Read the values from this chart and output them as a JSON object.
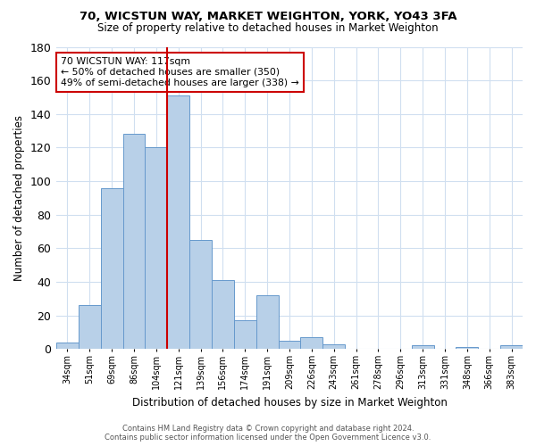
{
  "title": "70, WICSTUN WAY, MARKET WEIGHTON, YORK, YO43 3FA",
  "subtitle": "Size of property relative to detached houses in Market Weighton",
  "xlabel": "Distribution of detached houses by size in Market Weighton",
  "ylabel": "Number of detached properties",
  "bar_labels": [
    "34sqm",
    "51sqm",
    "69sqm",
    "86sqm",
    "104sqm",
    "121sqm",
    "139sqm",
    "156sqm",
    "174sqm",
    "191sqm",
    "209sqm",
    "226sqm",
    "243sqm",
    "261sqm",
    "278sqm",
    "296sqm",
    "313sqm",
    "331sqm",
    "348sqm",
    "366sqm",
    "383sqm"
  ],
  "bar_values": [
    4,
    26,
    96,
    128,
    120,
    151,
    65,
    41,
    17,
    32,
    5,
    7,
    3,
    0,
    0,
    0,
    2,
    0,
    1,
    0,
    2
  ],
  "bar_color": "#b8d0e8",
  "bar_edge_color": "#6699cc",
  "vline_index": 5,
  "vline_color": "#cc0000",
  "ylim": [
    0,
    180
  ],
  "yticks": [
    0,
    20,
    40,
    60,
    80,
    100,
    120,
    140,
    160,
    180
  ],
  "annotation_title": "70 WICSTUN WAY: 117sqm",
  "annotation_line1": "← 50% of detached houses are smaller (350)",
  "annotation_line2": "49% of semi-detached houses are larger (338) →",
  "footer_line1": "Contains HM Land Registry data © Crown copyright and database right 2024.",
  "footer_line2": "Contains public sector information licensed under the Open Government Licence v3.0.",
  "background_color": "#ffffff",
  "grid_color": "#d0dff0"
}
